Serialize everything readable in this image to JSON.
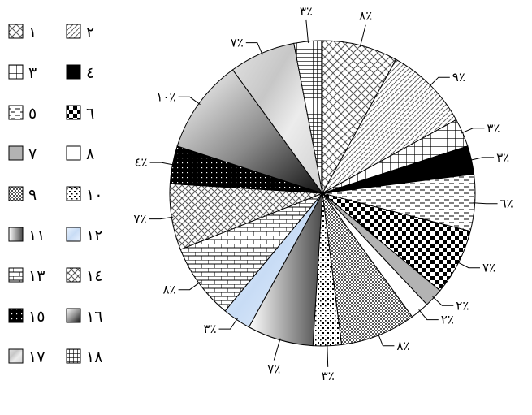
{
  "chart_data": {
    "type": "pie",
    "legend_position": "left",
    "slices": [
      {
        "category": "١",
        "value": 8,
        "label": "٨٪",
        "fill": "diag-cross"
      },
      {
        "category": "٢",
        "value": 9,
        "label": "٩٪",
        "fill": "diag-lines"
      },
      {
        "category": "٣",
        "value": 3,
        "label": "٣٪",
        "fill": "grid-open"
      },
      {
        "category": "٤",
        "value": 3,
        "label": "٣٪",
        "fill": "solid-black"
      },
      {
        "category": "٥",
        "value": 6,
        "label": "٦٪",
        "fill": "dashes"
      },
      {
        "category": "٦",
        "value": 7,
        "label": "٧٪",
        "fill": "checker"
      },
      {
        "category": "٧",
        "value": 2,
        "label": "٢٪",
        "fill": "solid-gray"
      },
      {
        "category": "٨",
        "value": 2,
        "label": "٢٪",
        "fill": "white"
      },
      {
        "category": "٩",
        "value": 8,
        "label": "٨٪",
        "fill": "fine-checker"
      },
      {
        "category": "١٠",
        "value": 3,
        "label": "٣٪",
        "fill": "dots"
      },
      {
        "category": "١١",
        "value": 7,
        "label": "٧٪",
        "fill": "gradient-h"
      },
      {
        "category": "١٢",
        "value": 3,
        "label": "٣٪",
        "fill": "light-blue"
      },
      {
        "category": "١٣",
        "value": 8,
        "label": "٨٪",
        "fill": "bricks"
      },
      {
        "category": "١٤",
        "value": 7,
        "label": "٧٪",
        "fill": "weave"
      },
      {
        "category": "١٥",
        "value": 4,
        "label": "٤٪",
        "fill": "black-dots"
      },
      {
        "category": "١٦",
        "value": 10,
        "label": "١٠٪",
        "fill": "gradient-d"
      },
      {
        "category": "١٧",
        "value": 7,
        "label": "٧٪",
        "fill": "marble"
      },
      {
        "category": "١٨",
        "value": 3,
        "label": "٣٪",
        "fill": "grid-dense"
      }
    ]
  }
}
